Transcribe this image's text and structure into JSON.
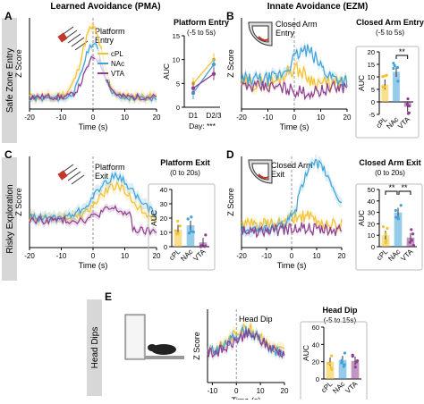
{
  "figure": {
    "column_titles": [
      "Learned Avoidance (PMA)",
      "Innate Avoidance (EZM)"
    ],
    "row_labels": [
      "Safe Zone Entry",
      "Risky Exploration",
      "Head Dips"
    ],
    "colors": {
      "cPL": "#f2c230",
      "NAc": "#3fa3d8",
      "VTA": "#8e3f8f",
      "row_label_bg": "#d7d7d7"
    }
  },
  "panels": {
    "A": {
      "letter": "A",
      "trace_label": "Platform\nEntry",
      "legend": [
        "cPL",
        "NAc",
        "VTA"
      ],
      "xlabel": "Time (s)",
      "ylabel": "Z Score",
      "xticks": [
        "-20",
        "-10",
        "0",
        "10",
        "20"
      ],
      "bar_title": "Platform Entry",
      "bar_subtitle": "(-5 to 5s)",
      "bar_ylabel": "AUC",
      "bar_yticks": [
        "0",
        "5",
        "10",
        "15"
      ],
      "bar_xticks": [
        "D1",
        "D2/3"
      ],
      "day_text": "Day: ***"
    },
    "B": {
      "letter": "B",
      "trace_label": "Closed Arm\nEntry",
      "xlabel": "Time (s)",
      "ylabel": "Z Score",
      "xticks": [
        "-20",
        "-10",
        "0",
        "10",
        "20"
      ],
      "bar_title": "Closed Arm Entry",
      "bar_subtitle": "(-5 to 5s)",
      "bar_ylabel": "AUC",
      "bar_yticks": [
        "-5",
        "0",
        "5",
        "10",
        "15",
        "20"
      ],
      "bar_xticks": [
        "cPL",
        "NAc",
        "VTA"
      ],
      "sig": "**"
    },
    "C": {
      "letter": "C",
      "trace_label": "Platform\nExit",
      "xlabel": "Time (s)",
      "ylabel": "Z Score",
      "xticks": [
        "-20",
        "-10",
        "0",
        "10",
        "20"
      ],
      "bar_title": "Platform Exit",
      "bar_subtitle": "(0 to 20s)",
      "bar_ylabel": "AUC",
      "bar_yticks": [
        "0",
        "10",
        "20",
        "30",
        "40"
      ],
      "bar_xticks": [
        "cPL",
        "NAc",
        "VTA"
      ]
    },
    "D": {
      "letter": "D",
      "trace_label": "Closed Arm\nExit",
      "xlabel": "Time (s)",
      "ylabel": "Z Score",
      "xticks": [
        "-20",
        "-10",
        "0",
        "10",
        "20"
      ],
      "bar_title": "Closed Arm Exit",
      "bar_subtitle": "(0 to 20s)",
      "bar_ylabel": "AUC",
      "bar_yticks": [
        "0",
        "10",
        "20",
        "30",
        "40",
        "50"
      ],
      "bar_xticks": [
        "cPL",
        "NAc",
        "VTA"
      ],
      "sig": [
        "**",
        "**"
      ]
    },
    "E": {
      "letter": "E",
      "trace_label": "Head Dip",
      "xlabel": "Time (s)",
      "ylabel": "Z Score",
      "xticks": [
        "-10",
        "0",
        "10",
        "20"
      ],
      "bar_title": "Head Dip",
      "bar_subtitle": "(-5 to 15s)",
      "bar_ylabel": "AUC",
      "bar_yticks": [
        "0",
        "20",
        "40",
        "60"
      ],
      "bar_xticks": [
        "cPL",
        "NAc",
        "VTA"
      ]
    }
  },
  "chart_data": [
    {
      "panel": "A",
      "type": "line",
      "xlabel": "D1 vs D2/3",
      "ylabel": "AUC",
      "categories": [
        "D1",
        "D2/3"
      ],
      "ylim": [
        0,
        15
      ],
      "series": [
        {
          "name": "cPL",
          "values": [
            5,
            10
          ]
        },
        {
          "name": "NAc",
          "values": [
            3,
            9
          ]
        },
        {
          "name": "VTA",
          "values": [
            4,
            7
          ]
        }
      ]
    },
    {
      "panel": "B",
      "type": "bar",
      "ylabel": "AUC",
      "categories": [
        "cPL",
        "NAc",
        "VTA"
      ],
      "values": [
        7,
        12,
        -2
      ],
      "ylim": [
        -5,
        20
      ]
    },
    {
      "panel": "C",
      "type": "bar",
      "ylabel": "AUC",
      "categories": [
        "cPL",
        "NAc",
        "VTA"
      ],
      "values": [
        12,
        15,
        3
      ],
      "ylim": [
        0,
        40
      ]
    },
    {
      "panel": "D",
      "type": "bar",
      "ylabel": "AUC",
      "categories": [
        "cPL",
        "NAc",
        "VTA"
      ],
      "values": [
        10,
        30,
        8
      ],
      "ylim": [
        0,
        50
      ]
    },
    {
      "panel": "E",
      "type": "bar",
      "ylabel": "AUC",
      "categories": [
        "cPL",
        "NAc",
        "VTA"
      ],
      "values": [
        20,
        22,
        21
      ],
      "ylim": [
        0,
        60
      ]
    }
  ]
}
